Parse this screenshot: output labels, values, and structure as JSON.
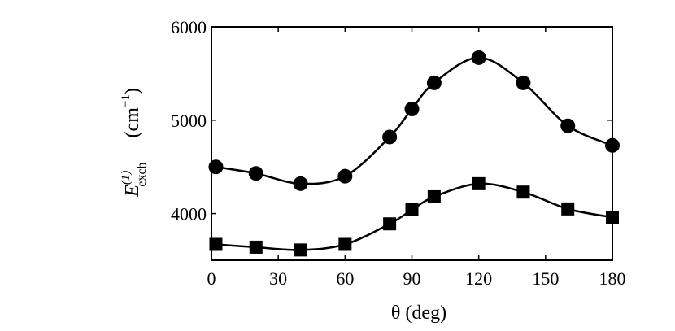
{
  "chart_data": {
    "type": "line",
    "xlabel": "θ  (deg)",
    "ylabel": {
      "symbol": "E",
      "superscript": "(1)",
      "subscript": "exch",
      "unit_open": "(cm",
      "unit_power": "−1",
      "unit_close": ")"
    },
    "xlim": [
      0,
      180
    ],
    "ylim": [
      3500,
      6000
    ],
    "xticks": [
      {
        "value": 0,
        "label": "0"
      },
      {
        "value": 30,
        "label": "30"
      },
      {
        "value": 60,
        "label": "60"
      },
      {
        "value": 90,
        "label": "90"
      },
      {
        "value": 120,
        "label": "120"
      },
      {
        "value": 150,
        "label": "150"
      },
      {
        "value": 180,
        "label": "180"
      }
    ],
    "yticks": [
      {
        "value": 4000,
        "label": "4000"
      },
      {
        "value": 5000,
        "label": "5000"
      },
      {
        "value": 6000,
        "label": "6000"
      }
    ],
    "grid": false,
    "series": [
      {
        "marker": "circle",
        "color": "#000000",
        "x": [
          2,
          20,
          40,
          60,
          80,
          90,
          100,
          120,
          140,
          160,
          180
        ],
        "y": [
          4500,
          4430,
          4320,
          4400,
          4820,
          5120,
          5400,
          5670,
          5400,
          4940,
          4730
        ]
      },
      {
        "marker": "square",
        "color": "#000000",
        "x": [
          2,
          20,
          40,
          60,
          80,
          90,
          100,
          120,
          140,
          160,
          180
        ],
        "y": [
          3670,
          3640,
          3610,
          3670,
          3890,
          4040,
          4180,
          4320,
          4230,
          4050,
          3960
        ]
      }
    ]
  }
}
